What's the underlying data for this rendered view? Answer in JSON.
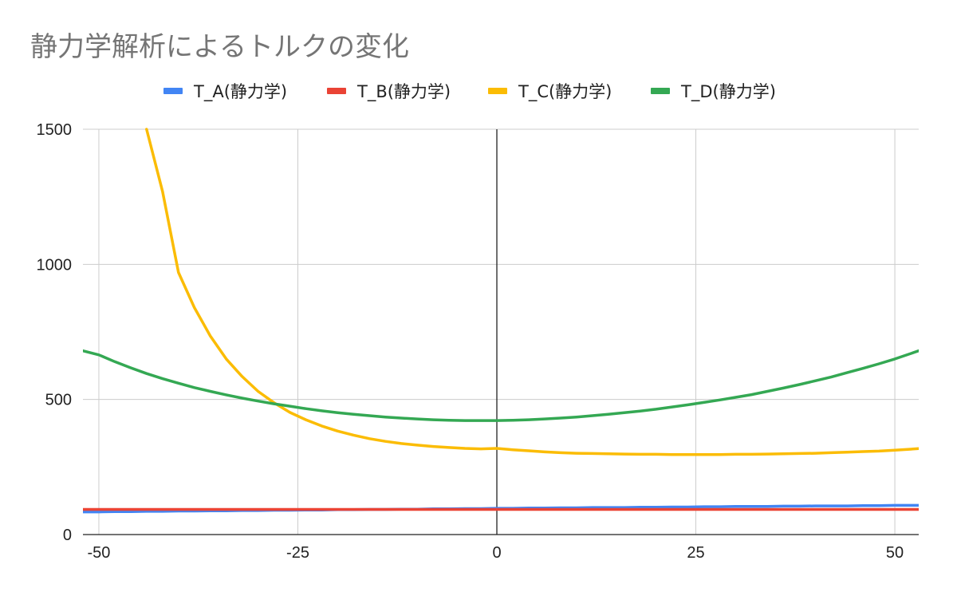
{
  "chart_data": {
    "type": "line",
    "title": "静力学解析によるトルクの変化",
    "xlabel": "",
    "ylabel": "",
    "xlim": [
      -52,
      53
    ],
    "ylim": [
      0,
      1500
    ],
    "xticks": [
      -50,
      -25,
      0,
      25,
      50
    ],
    "yticks": [
      0,
      500,
      1000,
      1500
    ],
    "grid": true,
    "legend_position": "top",
    "x": [
      -52,
      -50,
      -48,
      -46,
      -44,
      -42,
      -40,
      -38,
      -36,
      -34,
      -32,
      -30,
      -28,
      -26,
      -24,
      -22,
      -20,
      -18,
      -16,
      -14,
      -12,
      -10,
      -8,
      -6,
      -4,
      -2,
      0,
      2,
      4,
      6,
      8,
      10,
      12,
      14,
      16,
      18,
      20,
      22,
      24,
      26,
      28,
      30,
      32,
      34,
      36,
      38,
      40,
      42,
      44,
      46,
      48,
      50,
      52,
      53
    ],
    "series": [
      {
        "name": "T_A(静力学)",
        "color": "#4285F4",
        "values": [
          84,
          84,
          85,
          85,
          86,
          86,
          87,
          87,
          88,
          88,
          89,
          89,
          90,
          90,
          91,
          91,
          92,
          92,
          93,
          93,
          94,
          94,
          95,
          95,
          96,
          96,
          97,
          97,
          98,
          98,
          99,
          99,
          100,
          100,
          100,
          101,
          101,
          102,
          102,
          103,
          103,
          104,
          104,
          104,
          105,
          105,
          106,
          106,
          106,
          107,
          107,
          108,
          108,
          108
        ]
      },
      {
        "name": "T_B(静力学)",
        "color": "#EA4335",
        "values": [
          93,
          93,
          93,
          93,
          93,
          93,
          93,
          93,
          93,
          93,
          93,
          93,
          93,
          93,
          93,
          93,
          93,
          93,
          93,
          93,
          93,
          93,
          93,
          93,
          93,
          93,
          93,
          93,
          93,
          93,
          93,
          93,
          93,
          93,
          93,
          93,
          93,
          93,
          93,
          93,
          93,
          93,
          93,
          93,
          93,
          93,
          93,
          93,
          93,
          93,
          93,
          93,
          93,
          93
        ]
      },
      {
        "name": "T_C(静力学)",
        "color": "#FBBC04",
        "values": [
          null,
          null,
          null,
          null,
          1500,
          1270,
          970,
          840,
          735,
          650,
          585,
          530,
          488,
          452,
          425,
          402,
          383,
          368,
          355,
          345,
          337,
          331,
          326,
          322,
          319,
          317,
          319,
          314,
          310,
          306,
          303,
          301,
          300,
          299,
          298,
          297,
          297,
          296,
          296,
          296,
          296,
          297,
          297,
          298,
          299,
          300,
          301,
          303,
          305,
          307,
          309,
          312,
          316,
          318
        ]
      },
      {
        "name": "T_D(静力学)",
        "color": "#34A853",
        "values": [
          680,
          665,
          640,
          617,
          596,
          577,
          560,
          544,
          530,
          517,
          505,
          494,
          484,
          475,
          466,
          458,
          451,
          445,
          440,
          435,
          431,
          428,
          425,
          423,
          422,
          422,
          422,
          423,
          425,
          428,
          431,
          435,
          440,
          445,
          451,
          457,
          464,
          472,
          480,
          489,
          498,
          508,
          518,
          530,
          542,
          555,
          569,
          583,
          599,
          615,
          632,
          650,
          670,
          680
        ]
      }
    ]
  }
}
